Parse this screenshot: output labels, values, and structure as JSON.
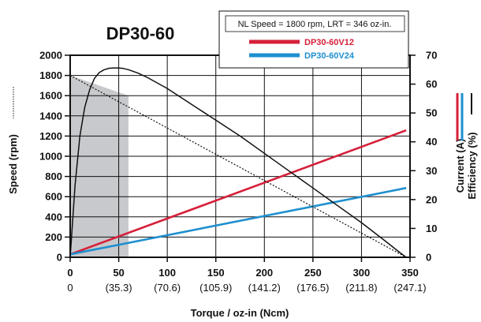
{
  "chart_data": {
    "type": "line",
    "title": "DP30-60",
    "note": "NL Speed = 1800 rpm, LRT = 346 oz-in.",
    "xlabel": "Torque / oz-in (Ncm)",
    "ylabel_left": "Speed (rpm)",
    "ylabel_right_1": "Current (A)",
    "ylabel_right_2": "Efficiency (%)",
    "xlim": [
      0,
      350
    ],
    "ylim_left": [
      0,
      2000
    ],
    "ylim_right": [
      0,
      70
    ],
    "x_ticks": [
      0,
      50,
      100,
      150,
      200,
      250,
      300,
      350
    ],
    "x_tick_labels": [
      "0",
      "50",
      "100",
      "150",
      "200",
      "250",
      "300",
      "350"
    ],
    "x_tick_sublabels": [
      "0",
      "(35.3)",
      "(70.6)",
      "(105.9)",
      "(141.2)",
      "(176.5)",
      "(211.8)",
      "(247.1)"
    ],
    "y_left_ticks": [
      0,
      200,
      400,
      600,
      800,
      1000,
      1200,
      1400,
      1600,
      1800,
      2000
    ],
    "y_left_tick_labels": [
      "0",
      "200",
      "400",
      "600",
      "800",
      "1000",
      "1200",
      "1400",
      "1600",
      "1800",
      "2000"
    ],
    "y_right_ticks": [
      0,
      10,
      20,
      30,
      40,
      50,
      60,
      70
    ],
    "y_right_tick_labels": [
      "0",
      "10",
      "20",
      "30",
      "40",
      "50",
      "60",
      "70"
    ],
    "grid": true,
    "legend_position": "top-right",
    "shaded_region": {
      "x": [
        0,
        60
      ],
      "y_top_rpm": [
        1800,
        1600
      ],
      "color": "#c8c9cc"
    },
    "series": [
      {
        "name": "DP30-60V12",
        "axis": "right",
        "kind": "current",
        "color": "#d6203a",
        "x": [
          0,
          346
        ],
        "y": [
          1,
          44
        ]
      },
      {
        "name": "DP30-60V24",
        "axis": "right",
        "kind": "current",
        "color": "#1e8fd0",
        "x": [
          0,
          346
        ],
        "y": [
          1,
          24
        ]
      },
      {
        "axis": "left",
        "kind": "speed",
        "color": "#111111",
        "dashed": true,
        "x": [
          0,
          346
        ],
        "y": [
          1800,
          0
        ]
      },
      {
        "axis": "right",
        "kind": "efficiency",
        "color": "#111111",
        "x": [
          0,
          5,
          10,
          15,
          20,
          25,
          30,
          35,
          40,
          45,
          50,
          55,
          60,
          70,
          80,
          100,
          125,
          150,
          175,
          200,
          225,
          250,
          275,
          300,
          325,
          340,
          346
        ],
        "y": [
          0,
          25,
          42,
          52,
          58,
          62,
          64,
          65,
          65.5,
          65.6,
          65.6,
          65.4,
          65,
          63.8,
          62.2,
          58.5,
          53,
          47.5,
          42,
          36,
          30,
          24,
          18,
          12,
          5.5,
          1.5,
          0
        ]
      }
    ],
    "legend_colors": {
      "V12": "#d6203a",
      "V24": "#1e8fd0"
    },
    "side_key_colors": {
      "current_red": "#d6203a",
      "current_blue": "#1e8fd0",
      "efficiency": "#111111"
    }
  }
}
